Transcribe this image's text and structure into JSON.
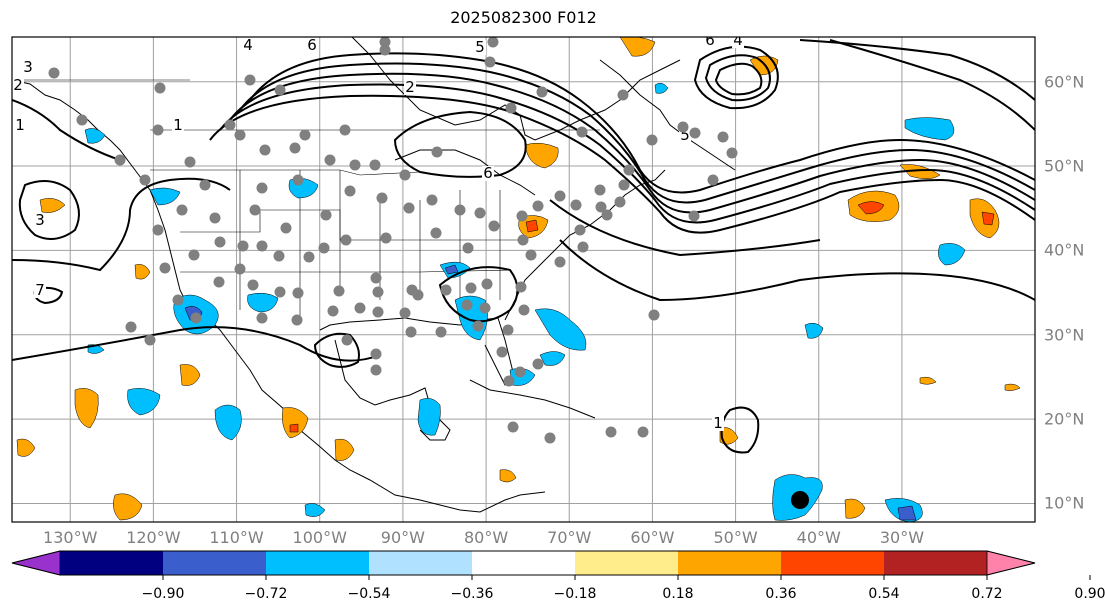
{
  "title": "2025082300 F012",
  "map": {
    "lon_range": [
      -137,
      -14
    ],
    "lat_range": [
      7.8,
      65.3
    ],
    "lon_ticks": [
      {
        "lon": -130,
        "label": "130°W"
      },
      {
        "lon": -120,
        "label": "120°W"
      },
      {
        "lon": -110,
        "label": "110°W"
      },
      {
        "lon": -100,
        "label": "100°W"
      },
      {
        "lon": -90,
        "label": "90°W"
      },
      {
        "lon": -80,
        "label": "80°W"
      },
      {
        "lon": -70,
        "label": "70°W"
      },
      {
        "lon": -60,
        "label": "60°W"
      },
      {
        "lon": -50,
        "label": "50°W"
      },
      {
        "lon": -40,
        "label": "40°W"
      },
      {
        "lon": -30,
        "label": "30°W"
      }
    ],
    "lat_ticks": [
      {
        "lat": 60,
        "label": "60°N"
      },
      {
        "lat": 50,
        "label": "50°N"
      },
      {
        "lat": 40,
        "label": "40°N"
      },
      {
        "lat": 30,
        "label": "30°N"
      },
      {
        "lat": 20,
        "label": "20°N"
      },
      {
        "lat": 10,
        "label": "10°N"
      }
    ],
    "grid": true,
    "contour_labels": [
      "5",
      "6",
      "4",
      "3",
      "2",
      "1",
      "5",
      "6",
      "6",
      "2",
      "4",
      "3",
      "1",
      "7",
      "1"
    ],
    "station_marker_color": "#808080",
    "highlight_marker_color": "#000000"
  },
  "colorbar": {
    "extend": "both",
    "levels": [
      "−0.90",
      "−0.72",
      "−0.54",
      "−0.36",
      "−0.18",
      "0.18",
      "0.36",
      "0.54",
      "0.72",
      "0.90"
    ],
    "colors": [
      "#9932cc",
      "#000080",
      "#3a5fcd",
      "#00bfff",
      "#b0e2ff",
      "#ffffff",
      "#ffec8b",
      "#ffa500",
      "#ff4500",
      "#b22222",
      "#ff82ab"
    ]
  }
}
